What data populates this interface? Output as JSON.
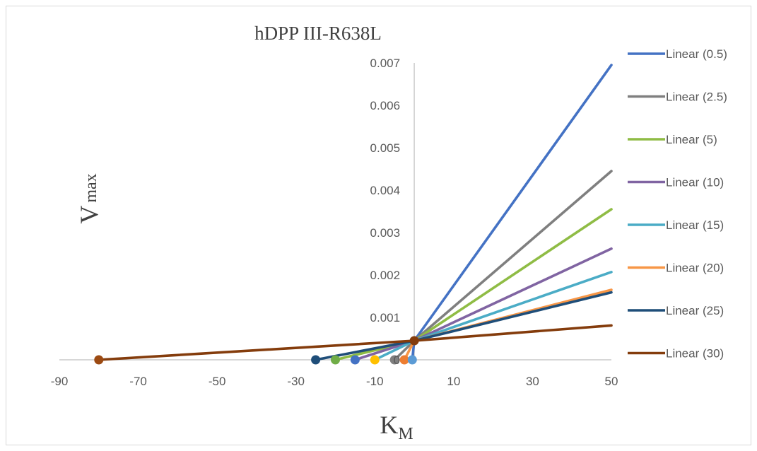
{
  "chart_data": {
    "type": "line",
    "title": "hDPP III-R638L",
    "xlabel": {
      "main": "K",
      "sub": "M"
    },
    "ylabel": {
      "main": "V",
      "sub": "max"
    },
    "xlim": [
      -90,
      50
    ],
    "ylim": [
      0,
      0.007
    ],
    "x_ticks": [
      "-90",
      "-70",
      "-50",
      "-30",
      "-10",
      "10",
      "30",
      "50"
    ],
    "x_tick_values": [
      -90,
      -70,
      -50,
      -30,
      -10,
      10,
      30,
      50
    ],
    "y_ticks": [
      "0",
      "0.001",
      "0.002",
      "0.003",
      "0.004",
      "0.005",
      "0.006",
      "0.007"
    ],
    "y_tick_values": [
      0,
      0.001,
      0.002,
      0.003,
      0.004,
      0.005,
      0.006,
      0.007
    ],
    "grid": false,
    "legend_position": "right",
    "series": [
      {
        "name": "Linear (0.5)",
        "color": "#4472C4",
        "x": [
          -0.5,
          0,
          50
        ],
        "y": [
          0,
          0.00045,
          0.00695
        ]
      },
      {
        "name": "Linear (2.5)",
        "color": "#7F7F7F",
        "x": [
          -5,
          0,
          50
        ],
        "y": [
          0,
          0.00045,
          0.00445
        ]
      },
      {
        "name": "Linear (5)",
        "color": "#8FBC45",
        "x": [
          -20,
          0,
          50
        ],
        "y": [
          0,
          0.00045,
          0.00355
        ]
      },
      {
        "name": "Linear (10)",
        "color": "#8064A2",
        "x": [
          -15,
          0,
          50
        ],
        "y": [
          0,
          0.00045,
          0.00262
        ]
      },
      {
        "name": "Linear (15)",
        "color": "#4BACC6",
        "x": [
          -10,
          0,
          50
        ],
        "y": [
          0,
          0.00045,
          0.00207
        ]
      },
      {
        "name": "Linear (20)",
        "color": "#F79646",
        "x": [
          -2.5,
          0,
          50
        ],
        "y": [
          0,
          0.00045,
          0.00165
        ]
      },
      {
        "name": "Linear (25)",
        "color": "#1F4E79",
        "x": [
          -25,
          0,
          50
        ],
        "y": [
          0,
          0.00045,
          0.00159
        ]
      },
      {
        "name": "Linear (30)",
        "color": "#843C0C",
        "x": [
          -80,
          0,
          50
        ],
        "y": [
          0,
          0.00045,
          0.00081
        ]
      }
    ],
    "markers": [
      {
        "x": -80,
        "y": 0,
        "color": "#9C4A12"
      },
      {
        "x": -25,
        "y": 0,
        "color": "#1F4E79"
      },
      {
        "x": -20,
        "y": 0,
        "color": "#70AD47"
      },
      {
        "x": -15,
        "y": 0,
        "color": "#4472C4"
      },
      {
        "x": -10,
        "y": 0,
        "color": "#FFC000"
      },
      {
        "x": -5,
        "y": 0,
        "color": "#7F7F7F"
      },
      {
        "x": -2.5,
        "y": 0,
        "color": "#ED7D31"
      },
      {
        "x": -0.5,
        "y": 0,
        "color": "#5B9BD5"
      },
      {
        "x": 0,
        "y": 0.00045,
        "color": "#843C0C"
      }
    ]
  }
}
